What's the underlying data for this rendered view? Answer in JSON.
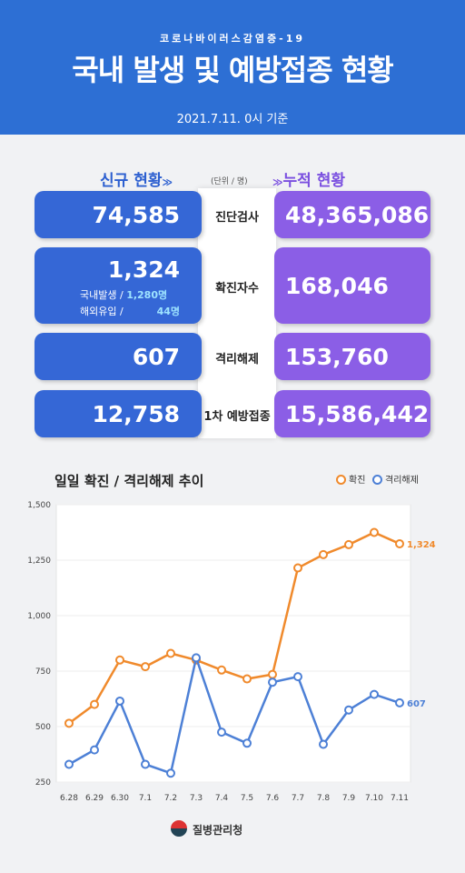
{
  "header": {
    "subtitle": "코로나바이러스감염증-19",
    "title": "국내 발생 및 예방접종 현황",
    "date": "2021.7.11. 0시 기준"
  },
  "sections": {
    "new_label": "신규 현황",
    "cum_label": "누적 현황",
    "unit": "(단위 / 명)",
    "chevron": "≫"
  },
  "rows": [
    {
      "label": "진단검사",
      "new": "74,585",
      "cum": "48,365,086"
    },
    {
      "label": "확진자수",
      "new": "1,324",
      "cum": "168,046",
      "domestic_label": "국내발생 /",
      "domestic": "1,280명",
      "overseas_label": "해외유입 /",
      "overseas": "44명"
    },
    {
      "label": "격리해제",
      "new": "607",
      "cum": "153,760"
    },
    {
      "label": "1차 예방접종",
      "new": "12,758",
      "cum": "15,586,442"
    }
  ],
  "chart_data": {
    "type": "line",
    "title": "일일 확진 / 격리해제 추이",
    "categories": [
      "6.28",
      "6.29",
      "6.30",
      "7.1",
      "7.2",
      "7.3",
      "7.4",
      "7.5",
      "7.6",
      "7.7",
      "7.8",
      "7.9",
      "7.10",
      "7.11"
    ],
    "series": [
      {
        "name": "확진",
        "color": "#f08a2c",
        "values": [
          515,
          600,
          800,
          770,
          830,
          800,
          755,
          715,
          735,
          1215,
          1275,
          1320,
          1375,
          1324
        ]
      },
      {
        "name": "격리해제",
        "color": "#4d80d6",
        "values": [
          330,
          395,
          615,
          330,
          290,
          810,
          475,
          425,
          700,
          725,
          420,
          575,
          645,
          607
        ]
      }
    ],
    "end_labels": [
      "1,324",
      "607"
    ],
    "yticks": [
      "1,500",
      "1,250",
      "1,000",
      "750",
      "500",
      "250"
    ],
    "ylim": [
      250,
      1500
    ]
  },
  "footer": {
    "org": "질병관리청"
  }
}
